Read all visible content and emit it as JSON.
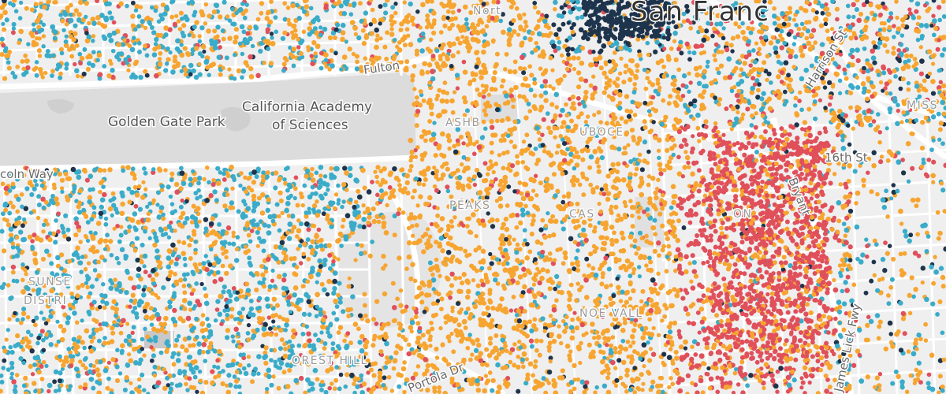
{
  "map": {
    "labels": {
      "golden_gate_park": "Golden Gate Park",
      "academy_line1": "California Academy",
      "academy_line2": "of Sciences",
      "fulton": "Fulton",
      "lincoln_way": "coln Way",
      "sixteenth_st": "16th St",
      "harrison_st": "Harrison St",
      "bryant": "Bryant",
      "james_lick": "James Lick Fwy",
      "portola": "Portola Dr",
      "san_francisco": "San Franc",
      "mission": "MISS",
      "north": "Nort",
      "sunset": "SUNSE",
      "district": "DISTRI",
      "forest_hill": "OREST HILL",
      "duboce": "UBOCE",
      "castro": "CAS",
      "twin_peaks": "PEAKS",
      "haight": "ASHB",
      "mission_hood": "ON",
      "noe": "NOE VALL"
    },
    "dot_colors": {
      "orange": "#f7a531",
      "teal": "#3aacc9",
      "red": "#e0505b",
      "navy": "#1e344d"
    },
    "colors": {
      "land": "#efefef",
      "park": "#d6d6d6",
      "road": "#ffffff"
    }
  }
}
